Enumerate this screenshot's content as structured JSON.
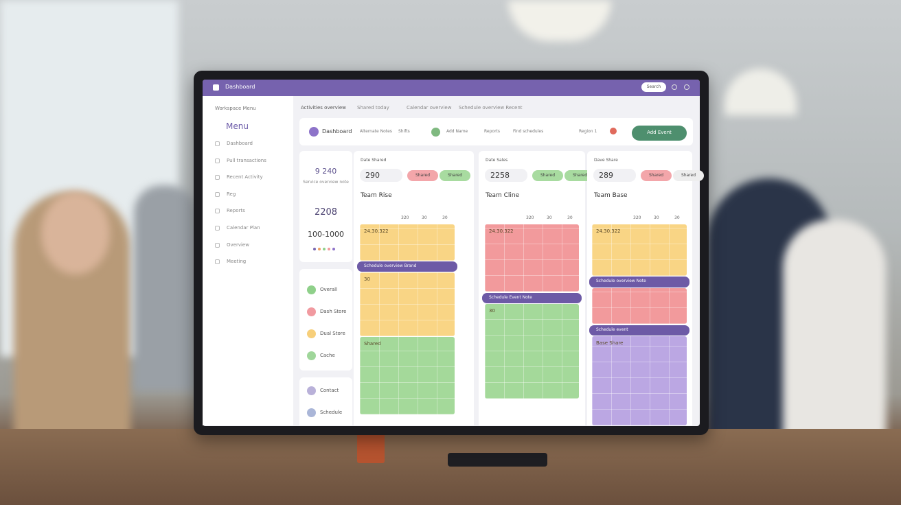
{
  "header": {
    "title": "Dashboard",
    "search": "Search"
  },
  "sidebar": {
    "heading": "Workspace Menu",
    "title": "Menu",
    "items": [
      "Dashboard",
      "Pull transactions",
      "Recent Activity",
      "Reg",
      "Reports",
      "Calendar Plan",
      "Overview",
      "Meeting"
    ]
  },
  "tabs": [
    "Activities overview",
    "Shared today",
    "Calendar overview",
    "Schedule overview Recent"
  ],
  "toolbar": {
    "user": "Dashboard",
    "fields": [
      "Alternate Notes",
      "Shifts",
      "Add Name",
      "Reports",
      "Find schedules",
      "Region 1"
    ],
    "button": "Add Event"
  },
  "summary": {
    "value": "9 240",
    "caption": "Service overview note",
    "stat": "2208",
    "range": "100-1000"
  },
  "contacts": [
    {
      "label": "Overall",
      "color": "#8fd08a"
    },
    {
      "label": "Dash Store",
      "color": "#f19aa0"
    },
    {
      "label": "Dual Store",
      "color": "#f7cf7a"
    },
    {
      "label": "Cache",
      "color": "#9fd69a"
    }
  ],
  "people": [
    {
      "label": "Contact",
      "color": "#b9b1d9"
    },
    {
      "label": "Schedule",
      "color": "#aab6d8"
    }
  ],
  "columns": [
    {
      "header": "Date Shared",
      "value": "290",
      "chips": [
        {
          "label": "Shared",
          "color": "#f3a6aa"
        },
        {
          "label": "Shared",
          "color": "#a8dba0"
        }
      ],
      "title": "Team Rise",
      "time_labels": [
        "320",
        "30",
        "30"
      ],
      "blocks": [
        {
          "label": "24.30.322",
          "color": "#f9d585"
        },
        {
          "label": "Schedule overview Brand",
          "color": "#6d5aa6"
        },
        {
          "label": "30",
          "color": "#f9d585"
        },
        {
          "label": "Shared",
          "color": "#a4d99a"
        }
      ]
    },
    {
      "header": "Date Sales",
      "value": "2258",
      "chips": [
        {
          "label": "Shared",
          "color": "#a8dba0"
        },
        {
          "label": "Shared",
          "color": "#a8dba0"
        }
      ],
      "title": "Team Cline",
      "time_labels": [
        "320",
        "30",
        "30"
      ],
      "blocks": [
        {
          "label": "24.30.322",
          "color": "#f29a9c"
        },
        {
          "label": "Schedule Event Note",
          "color": "#6d5aa6"
        },
        {
          "label": "30",
          "color": "#a4d99a"
        }
      ]
    },
    {
      "header": "Dave Share",
      "value": "289",
      "chips": [
        {
          "label": "Shared",
          "color": "#f3a6aa"
        },
        {
          "label": "Shared",
          "color": "#eeeeee"
        }
      ],
      "title": "Team Base",
      "time_labels": [
        "320",
        "30",
        "30"
      ],
      "blocks": [
        {
          "label": "24.30.322",
          "color": "#f9d585"
        },
        {
          "label": "Schedule overview Note",
          "color": "#6d5aa6"
        },
        {
          "color": "#f29a9c"
        },
        {
          "label": "Schedule event",
          "color": "#6d5aa6"
        },
        {
          "label": "Base Share",
          "color": "#bba7e3"
        }
      ]
    }
  ]
}
